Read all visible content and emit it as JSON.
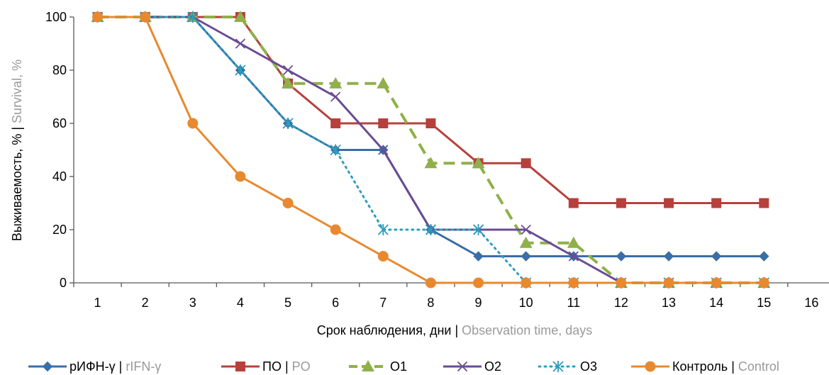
{
  "chart_data": {
    "type": "line",
    "x": [
      1,
      2,
      3,
      4,
      5,
      6,
      7,
      8,
      9,
      10,
      11,
      12,
      13,
      14,
      15
    ],
    "x_ticks": [
      "1",
      "2",
      "3",
      "4",
      "5",
      "6",
      "7",
      "8",
      "9",
      "10",
      "11",
      "12",
      "13",
      "14",
      "15",
      "16"
    ],
    "y_ticks": [
      "0",
      "20",
      "40",
      "60",
      "80",
      "100"
    ],
    "xlim": [
      0.5,
      16.5
    ],
    "ylim": [
      0,
      100
    ],
    "xlabel": {
      "primary": "Срок наблюдения, дни",
      "separator": " | ",
      "secondary": "Observation time, days"
    },
    "ylabel": {
      "primary": "Выживаемость, %",
      "separator": " | ",
      "secondary": "Survival, %"
    },
    "grid": false,
    "legend_position": "bottom",
    "series": [
      {
        "name_primary": "рИФН-γ",
        "separator": " | ",
        "name_secondary": "rIFN-γ",
        "color": "#3b6ea5",
        "marker": "diamond",
        "dash": "solid",
        "values": [
          100,
          100,
          100,
          80,
          60,
          50,
          50,
          20,
          10,
          10,
          10,
          10,
          10,
          10,
          10
        ]
      },
      {
        "name_primary": "ПО",
        "separator": " | ",
        "name_secondary": "PO",
        "color": "#b7403c",
        "marker": "square",
        "dash": "solid",
        "values": [
          100,
          100,
          100,
          100,
          75,
          60,
          60,
          60,
          45,
          45,
          30,
          30,
          30,
          30,
          30
        ]
      },
      {
        "name_primary": "O1",
        "name_secondary": "",
        "color": "#8fb04a",
        "marker": "triangle",
        "dash": "dash",
        "values": [
          100,
          100,
          100,
          100,
          75,
          75,
          75,
          45,
          45,
          15,
          15,
          0,
          0,
          0,
          0
        ]
      },
      {
        "name_primary": "O2",
        "name_secondary": "",
        "color": "#6a4c93",
        "marker": "x",
        "dash": "solid",
        "values": [
          100,
          100,
          100,
          90,
          80,
          70,
          50,
          20,
          20,
          20,
          10,
          0,
          0,
          0,
          0
        ]
      },
      {
        "name_primary": "O3",
        "name_secondary": "",
        "color": "#2e9dbb",
        "marker": "asterisk",
        "dash": "dot",
        "values": [
          100,
          100,
          100,
          80,
          60,
          50,
          20,
          20,
          20,
          0,
          0,
          0,
          0,
          0,
          0
        ]
      },
      {
        "name_primary": "Контроль",
        "separator": " | ",
        "name_secondary": "Control",
        "color": "#e8892f",
        "marker": "circle",
        "dash": "solid",
        "values": [
          100,
          100,
          60,
          40,
          30,
          20,
          10,
          0,
          0,
          0,
          0,
          0,
          0,
          0,
          0
        ]
      }
    ],
    "colors": {
      "text_primary": "#000000",
      "text_secondary": "#9a9a9a",
      "axis": "#595959"
    }
  }
}
